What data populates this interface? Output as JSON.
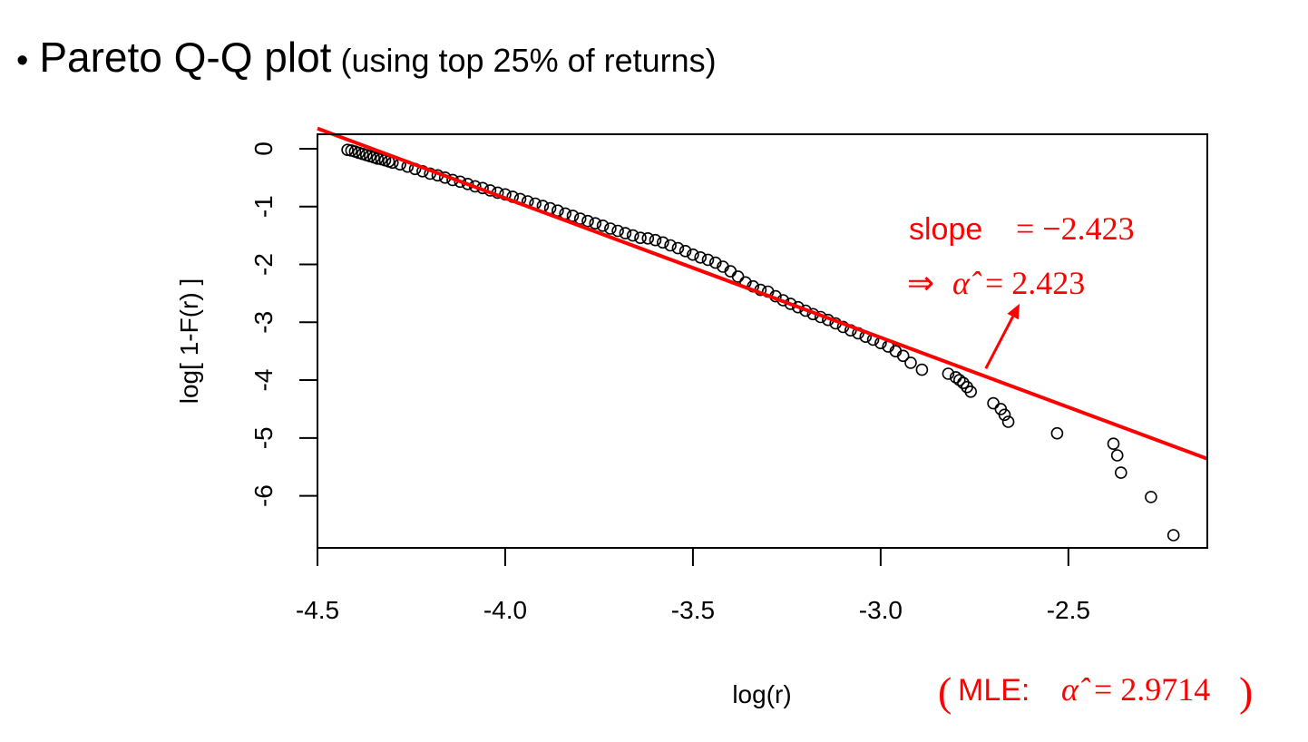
{
  "slide": {
    "bullet": "•",
    "title": "Pareto Q-Q plot",
    "subtitle": "(using top 25% of returns)"
  },
  "chart_data": {
    "type": "scatter",
    "title": "",
    "xlabel": "log(r)",
    "ylabel": "log[ 1-F(r) ]",
    "xlim": [
      -4.5,
      -2.13
    ],
    "ylim": [
      -6.9,
      0.25
    ],
    "xticks": [
      -4.5,
      -4.0,
      -3.5,
      -3.0,
      -2.5
    ],
    "xtick_labels": [
      "-4.5",
      "-4.0",
      "-3.5",
      "-3.0",
      "-2.5"
    ],
    "yticks": [
      0,
      -1,
      -2,
      -3,
      -4,
      -5,
      -6
    ],
    "ytick_labels": [
      "0",
      "-1",
      "-2",
      "-3",
      "-4",
      "-5",
      "-6"
    ],
    "grid": false,
    "point_style": "open-circle",
    "series": [
      {
        "x": [
          -4.42,
          -4.41,
          -4.4,
          -4.39,
          -4.38,
          -4.37,
          -4.36,
          -4.35,
          -4.34,
          -4.33,
          -4.32,
          -4.31,
          -4.3,
          -4.28,
          -4.26,
          -4.24,
          -4.22,
          -4.2,
          -4.18,
          -4.16,
          -4.14,
          -4.12,
          -4.1,
          -4.08,
          -4.06,
          -4.04,
          -4.02,
          -4.0,
          -3.98,
          -3.96,
          -3.94,
          -3.92,
          -3.9,
          -3.88,
          -3.86,
          -3.84,
          -3.82,
          -3.8,
          -3.78,
          -3.76,
          -3.74,
          -3.72,
          -3.7,
          -3.68,
          -3.66,
          -3.64,
          -3.62,
          -3.6,
          -3.58,
          -3.56,
          -3.54,
          -3.52,
          -3.5,
          -3.48,
          -3.46,
          -3.44,
          -3.42,
          -3.4,
          -3.38,
          -3.36,
          -3.34,
          -3.32,
          -3.3,
          -3.28,
          -3.26,
          -3.24,
          -3.22,
          -3.2,
          -3.18,
          -3.16,
          -3.14,
          -3.12,
          -3.1,
          -3.08,
          -3.06,
          -3.04,
          -3.02,
          -3.0,
          -2.98,
          -2.96,
          -2.94,
          -2.92,
          -2.89,
          -2.82,
          -2.8,
          -2.79,
          -2.78,
          -2.77,
          -2.76,
          -2.7,
          -2.68,
          -2.67,
          -2.66,
          -2.53,
          -2.38,
          -2.37,
          -2.36,
          -2.28,
          -2.22
        ],
        "y": [
          -0.02,
          -0.03,
          -0.05,
          -0.07,
          -0.09,
          -0.11,
          -0.13,
          -0.15,
          -0.17,
          -0.18,
          -0.2,
          -0.22,
          -0.24,
          -0.27,
          -0.31,
          -0.35,
          -0.39,
          -0.43,
          -0.46,
          -0.5,
          -0.54,
          -0.57,
          -0.61,
          -0.65,
          -0.68,
          -0.72,
          -0.76,
          -0.79,
          -0.83,
          -0.87,
          -0.91,
          -0.95,
          -0.99,
          -1.03,
          -1.07,
          -1.12,
          -1.16,
          -1.21,
          -1.25,
          -1.29,
          -1.33,
          -1.38,
          -1.42,
          -1.46,
          -1.5,
          -1.54,
          -1.55,
          -1.58,
          -1.62,
          -1.67,
          -1.72,
          -1.77,
          -1.83,
          -1.88,
          -1.92,
          -1.97,
          -2.04,
          -2.12,
          -2.21,
          -2.31,
          -2.38,
          -2.44,
          -2.47,
          -2.55,
          -2.62,
          -2.68,
          -2.74,
          -2.8,
          -2.86,
          -2.91,
          -2.96,
          -3.02,
          -3.08,
          -3.14,
          -3.19,
          -3.25,
          -3.3,
          -3.36,
          -3.42,
          -3.5,
          -3.58,
          -3.7,
          -3.82,
          -3.89,
          -3.95,
          -4.0,
          -4.05,
          -4.12,
          -4.2,
          -4.4,
          -4.5,
          -4.6,
          -4.72,
          -4.92,
          -5.1,
          -5.3,
          -5.6,
          -6.02,
          -6.68
        ]
      }
    ],
    "fit_line": {
      "color": "#ff0000",
      "slope": -2.423,
      "x": [
        -4.5,
        -2.13
      ],
      "y": [
        0.35,
        -5.36
      ]
    },
    "annotations": [
      {
        "kind": "sans",
        "text": "slope",
        "color": "#ff0000"
      },
      {
        "kind": "serif",
        "text": "= −2.423",
        "color": "#ff0000"
      },
      {
        "kind": "serif",
        "text": "⇒",
        "color": "#ff0000"
      },
      {
        "kind": "serif-italic",
        "text": "α̂",
        "color": "#ff0000"
      },
      {
        "kind": "serif",
        "text": "= 2.423",
        "color": "#ff0000"
      },
      {
        "kind": "arrow",
        "from": [
          -2.72,
          -3.8
        ],
        "to": [
          -2.63,
          -2.68
        ],
        "color": "#ff0000"
      }
    ],
    "mle_note": {
      "open": "(",
      "prefix": "MLE:",
      "alpha": "α̂",
      "value": "= 2.9714",
      "close": ")",
      "color": "#ff0000"
    }
  }
}
